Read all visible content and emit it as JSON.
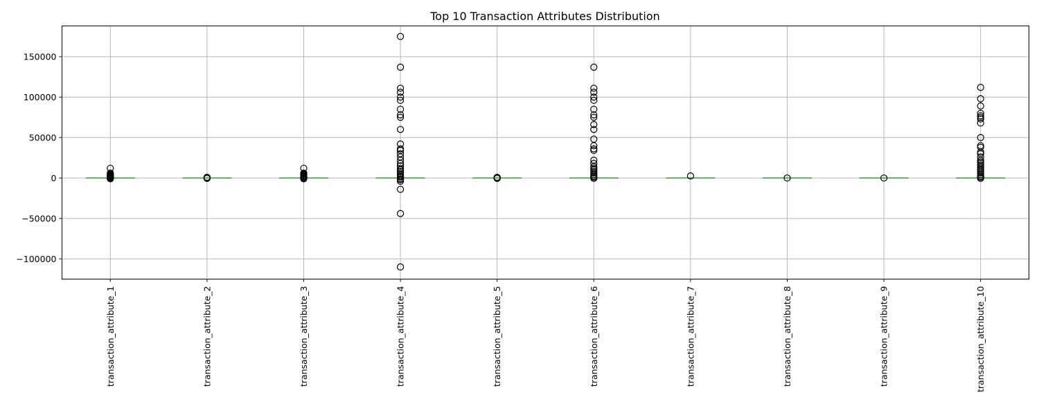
{
  "chart_data": {
    "type": "box",
    "title": "Top 10 Transaction Attributes Distribution",
    "xlabel": "",
    "ylabel": "",
    "ylim": [
      -125000,
      188000
    ],
    "yticks": [
      -100000,
      -50000,
      0,
      50000,
      100000,
      150000
    ],
    "ytick_labels": [
      "−100000",
      "−50000",
      "0",
      "50000",
      "100000",
      "150000"
    ],
    "grid": true,
    "box_color": "#2ca02c",
    "outlier_color": "#000000",
    "categories": [
      "transaction_attribute_1",
      "transaction_attribute_2",
      "transaction_attribute_3",
      "transaction_attribute_4",
      "transaction_attribute_5",
      "transaction_attribute_6",
      "transaction_attribute_7",
      "transaction_attribute_8",
      "transaction_attribute_9",
      "transaction_attribute_10"
    ],
    "boxes": [
      {
        "q1": 0,
        "median": 0,
        "q3": 0,
        "whisker_low": 0,
        "whisker_high": 0,
        "outliers": [
          12000,
          6000,
          5000,
          4000,
          3000,
          2500,
          2000,
          1500,
          1000,
          500,
          -500,
          -1000
        ]
      },
      {
        "q1": 0,
        "median": 0,
        "q3": 0,
        "whisker_low": 0,
        "whisker_high": 0,
        "outliers": [
          800,
          500,
          300,
          -300,
          -500
        ]
      },
      {
        "q1": 0,
        "median": 0,
        "q3": 0,
        "whisker_low": 0,
        "whisker_high": 0,
        "outliers": [
          12000,
          6000,
          5000,
          4000,
          3000,
          2000,
          1000,
          500,
          -500,
          -1000
        ]
      },
      {
        "q1": 0,
        "median": 0,
        "q3": 0,
        "whisker_low": 0,
        "whisker_high": 0,
        "outliers": [
          175000,
          137000,
          111000,
          106000,
          100000,
          96000,
          85000,
          78000,
          75000,
          60000,
          42000,
          36000,
          34000,
          30000,
          26000,
          22000,
          18000,
          15000,
          12000,
          10000,
          8000,
          6000,
          4000,
          2000,
          1000,
          -1000,
          -2000,
          -4000,
          -14000,
          -44000,
          -110000
        ]
      },
      {
        "q1": 0,
        "median": 0,
        "q3": 0,
        "whisker_low": 0,
        "whisker_high": 0,
        "outliers": [
          800,
          500,
          300,
          -300,
          -500
        ]
      },
      {
        "q1": 0,
        "median": 0,
        "q3": 0,
        "whisker_low": 0,
        "whisker_high": 0,
        "outliers": [
          137000,
          111000,
          106000,
          100000,
          96000,
          85000,
          78000,
          75000,
          66000,
          60000,
          48000,
          40000,
          36000,
          34000,
          22000,
          18000,
          14000,
          12000,
          10000,
          8000,
          6000,
          4000,
          2000,
          1000,
          -500
        ]
      },
      {
        "q1": 0,
        "median": 0,
        "q3": 0,
        "whisker_low": 0,
        "whisker_high": 0,
        "outliers": [
          2500
        ]
      },
      {
        "q1": 0,
        "median": 0,
        "q3": 0,
        "whisker_low": 0,
        "whisker_high": 0,
        "outliers": [
          0
        ]
      },
      {
        "q1": 0,
        "median": 0,
        "q3": 0,
        "whisker_low": 0,
        "whisker_high": 0,
        "outliers": [
          0
        ]
      },
      {
        "q1": 0,
        "median": 0,
        "q3": 0,
        "whisker_low": 0,
        "whisker_high": 0,
        "outliers": [
          112000,
          98000,
          89000,
          80000,
          77000,
          75000,
          73000,
          68000,
          50000,
          40000,
          38000,
          32000,
          30000,
          26000,
          22000,
          20000,
          18000,
          16000,
          14000,
          12000,
          10000,
          8000,
          6000,
          4000,
          2000,
          1000,
          -500
        ]
      }
    ]
  }
}
